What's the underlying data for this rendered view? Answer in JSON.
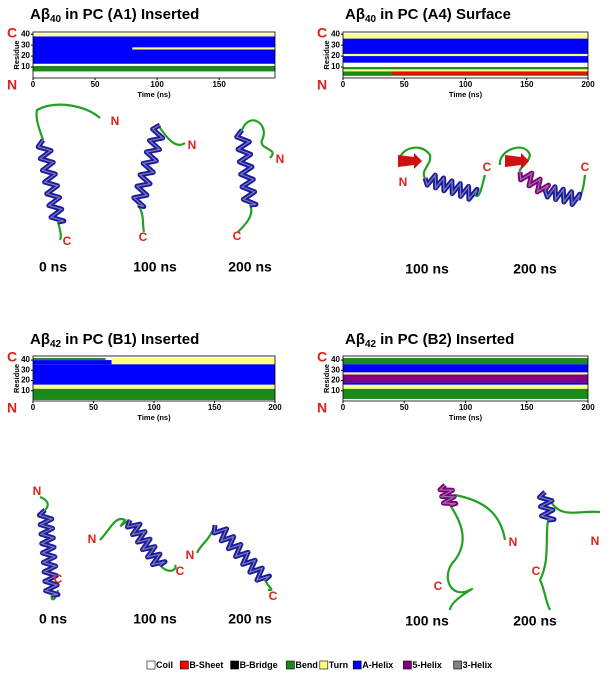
{
  "chart_data": [
    {
      "type": "heatmap",
      "title": "Aβ",
      "title_subscript": "40",
      "title_rest": "in PC (A1) Inserted",
      "xlabel": "Time (ns)",
      "ylabel": "Residue",
      "xlim": [
        0,
        195
      ],
      "xticks": [
        0,
        50,
        100,
        150
      ],
      "ylim": [
        0,
        42
      ],
      "yticks": [
        10,
        20,
        30,
        40
      ],
      "terminal_top": "C",
      "terminal_bottom": "N",
      "bands": [
        {
          "s": 3,
          "residues": [
            6,
            11
          ],
          "time": [
            0,
            195
          ]
        },
        {
          "s": 5,
          "residues": [
            13,
            38
          ],
          "time": [
            0,
            195
          ]
        },
        {
          "s": 4,
          "residues": [
            26,
            28
          ],
          "time": [
            80,
            195
          ]
        },
        {
          "s": 4,
          "residues": [
            38,
            40
          ],
          "time": [
            0,
            195
          ]
        }
      ],
      "snapshots": [
        {
          "label": "0 ns",
          "N": "N",
          "C": "C"
        },
        {
          "label": "100 ns",
          "N": "N",
          "C": "C"
        },
        {
          "label": "200 ns",
          "N": "N",
          "C": "C"
        }
      ]
    },
    {
      "type": "heatmap",
      "title": "Aβ",
      "title_subscript": "40",
      "title_rest": "in PC (A4) Surface",
      "xlabel": "Time (ns)",
      "ylabel": "Residue",
      "xlim": [
        0,
        200
      ],
      "xticks": [
        0,
        50,
        100,
        150,
        200
      ],
      "ylim": [
        0,
        42
      ],
      "yticks": [
        10,
        20,
        30,
        40
      ],
      "terminal_top": "C",
      "terminal_bottom": "N",
      "bands": [
        {
          "s": 3,
          "residues": [
            2,
            10
          ],
          "time": [
            0,
            200
          ]
        },
        {
          "s": 1,
          "residues": [
            3,
            6
          ],
          "time": [
            40,
            200
          ]
        },
        {
          "s": 4,
          "residues": [
            6,
            8
          ],
          "time": [
            0,
            200
          ]
        },
        {
          "s": 5,
          "residues": [
            14,
            36
          ],
          "time": [
            0,
            200
          ]
        },
        {
          "s": 4,
          "residues": [
            36,
            40
          ],
          "time": [
            0,
            200
          ]
        },
        {
          "s": 4,
          "residues": [
            20,
            22
          ],
          "time": [
            0,
            200
          ]
        }
      ],
      "snapshots": [
        {
          "label": "100 ns",
          "N": "N",
          "C": "C"
        },
        {
          "label": "200 ns",
          "C": "C"
        }
      ]
    },
    {
      "type": "heatmap",
      "title": "Aβ",
      "title_subscript": "42",
      "title_rest": "in PC (B1) Inserted",
      "xlabel": "Time (ns)",
      "ylabel": "Residue",
      "xlim": [
        0,
        200
      ],
      "xticks": [
        0,
        50,
        100,
        150,
        200
      ],
      "ylim": [
        0,
        44
      ],
      "yticks": [
        10,
        20,
        30,
        40
      ],
      "terminal_top": "C",
      "terminal_bottom": "N",
      "bands": [
        {
          "s": 3,
          "residues": [
            1,
            12
          ],
          "time": [
            0,
            200
          ]
        },
        {
          "s": 4,
          "residues": [
            12,
            16
          ],
          "time": [
            0,
            200
          ]
        },
        {
          "s": 5,
          "residues": [
            16,
            36
          ],
          "time": [
            0,
            200
          ]
        },
        {
          "s": 5,
          "residues": [
            36,
            40
          ],
          "time": [
            0,
            65
          ]
        },
        {
          "s": 3,
          "residues": [
            40,
            42
          ],
          "time": [
            0,
            60
          ]
        },
        {
          "s": 4,
          "residues": [
            36,
            42
          ],
          "time": [
            65,
            200
          ]
        }
      ],
      "snapshots": [
        {
          "label": "0 ns",
          "N": "N",
          "C": "C"
        },
        {
          "label": "100 ns",
          "N": "N",
          "C": "C"
        },
        {
          "label": "200 ns",
          "N": "N",
          "C": "C"
        }
      ]
    },
    {
      "type": "heatmap",
      "title": "Aβ",
      "title_subscript": "42",
      "title_rest": "in PC (B2) Inserted",
      "xlabel": "Time (ns)",
      "ylabel": "Residue",
      "xlim": [
        0,
        200
      ],
      "xticks": [
        0,
        50,
        100,
        150,
        200
      ],
      "ylim": [
        0,
        44
      ],
      "yticks": [
        10,
        20,
        30,
        40
      ],
      "terminal_top": "C",
      "terminal_bottom": "N",
      "bands": [
        {
          "s": 3,
          "residues": [
            2,
            12
          ],
          "time": [
            0,
            200
          ]
        },
        {
          "s": 4,
          "residues": [
            12,
            16
          ],
          "time": [
            0,
            200
          ]
        },
        {
          "s": 5,
          "residues": [
            16,
            18
          ],
          "time": [
            0,
            200
          ]
        },
        {
          "s": 6,
          "residues": [
            18,
            26
          ],
          "time": [
            0,
            200
          ]
        },
        {
          "s": 4,
          "residues": [
            26,
            28
          ],
          "time": [
            0,
            200
          ]
        },
        {
          "s": 5,
          "residues": [
            28,
            36
          ],
          "time": [
            0,
            200
          ]
        },
        {
          "s": 3,
          "residues": [
            36,
            42
          ],
          "time": [
            0,
            200
          ]
        }
      ],
      "snapshots": [
        {
          "label": "100 ns",
          "N": "N",
          "C": "C"
        },
        {
          "label": "200 ns",
          "N": "N",
          "C": "C"
        }
      ]
    }
  ],
  "legend": [
    {
      "name": "Coil",
      "color": "#ffffff"
    },
    {
      "name": "B-Sheet",
      "color": "#ff0000"
    },
    {
      "name": "B-Bridge",
      "color": "#000000"
    },
    {
      "name": "Bend",
      "color": "#1a8a1a"
    },
    {
      "name": "Turn",
      "color": "#ffff80"
    },
    {
      "name": "A-Helix",
      "color": "#0000ff"
    },
    {
      "name": "5-Helix",
      "color": "#800080"
    },
    {
      "name": "3-Helix",
      "color": "#808080"
    }
  ]
}
